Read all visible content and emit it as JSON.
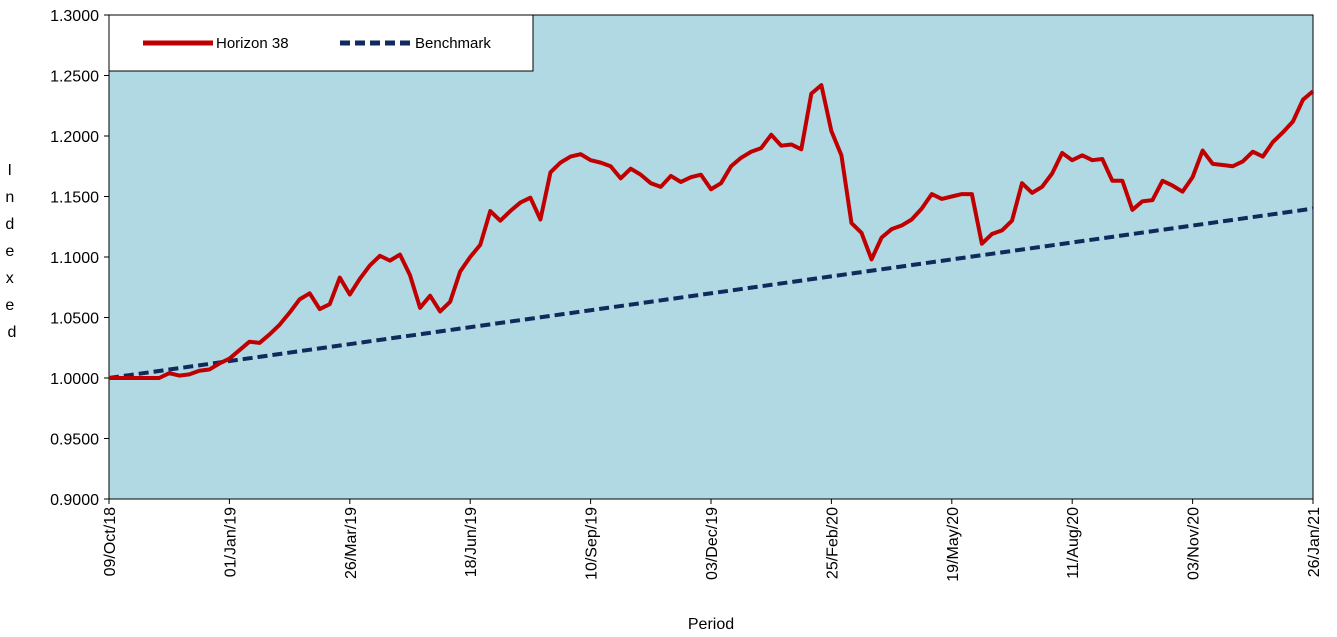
{
  "chart_data": {
    "type": "line",
    "xlabel": "Period",
    "ylabel": "Indexed",
    "ylim": [
      0.9,
      1.3
    ],
    "yticks": [
      "0.9000",
      "0.9500",
      "1.0000",
      "1.0500",
      "1.1000",
      "1.1500",
      "1.2000",
      "1.2500",
      "1.3000"
    ],
    "xticks": [
      {
        "label": "09/Oct/18",
        "date": "2018-10-09"
      },
      {
        "label": "01/Jan/19",
        "date": "2019-01-01"
      },
      {
        "label": "26/Mar/19",
        "date": "2019-03-26"
      },
      {
        "label": "18/Jun/19",
        "date": "2019-06-18"
      },
      {
        "label": "10/Sep/19",
        "date": "2019-09-10"
      },
      {
        "label": "03/Dec/19",
        "date": "2019-12-03"
      },
      {
        "label": "25/Feb/20",
        "date": "2020-02-25"
      },
      {
        "label": "19/May/20",
        "date": "2020-05-19"
      },
      {
        "label": "11/Aug/20",
        "date": "2020-08-11"
      },
      {
        "label": "03/Nov/20",
        "date": "2020-11-03"
      },
      {
        "label": "26/Jan/21",
        "date": "2021-01-26"
      }
    ],
    "legend_position": "top-left",
    "grid": false,
    "colors": {
      "plot_bg": "#b0d9e3",
      "horizon": "#c00000",
      "benchmark": "#102a5c"
    },
    "series": [
      {
        "name": "Horizon 38",
        "style": "solid",
        "points": [
          [
            "2018-10-09",
            1.0
          ],
          [
            "2018-10-16",
            1.0
          ],
          [
            "2018-10-23",
            1.0
          ],
          [
            "2018-10-30",
            1.0
          ],
          [
            "2018-11-06",
            1.0
          ],
          [
            "2018-11-13",
            1.0
          ],
          [
            "2018-11-20",
            1.004
          ],
          [
            "2018-11-27",
            1.002
          ],
          [
            "2018-12-04",
            1.003
          ],
          [
            "2018-12-11",
            1.006
          ],
          [
            "2018-12-18",
            1.007
          ],
          [
            "2018-12-25",
            1.012
          ],
          [
            "2019-01-01",
            1.016
          ],
          [
            "2019-01-08",
            1.023
          ],
          [
            "2019-01-15",
            1.03
          ],
          [
            "2019-01-22",
            1.029
          ],
          [
            "2019-01-29",
            1.036
          ],
          [
            "2019-02-05",
            1.044
          ],
          [
            "2019-02-12",
            1.054
          ],
          [
            "2019-02-19",
            1.065
          ],
          [
            "2019-02-26",
            1.07
          ],
          [
            "2019-03-05",
            1.057
          ],
          [
            "2019-03-12",
            1.061
          ],
          [
            "2019-03-19",
            1.083
          ],
          [
            "2019-03-26",
            1.069
          ],
          [
            "2019-04-02",
            1.082
          ],
          [
            "2019-04-09",
            1.093
          ],
          [
            "2019-04-16",
            1.101
          ],
          [
            "2019-04-23",
            1.097
          ],
          [
            "2019-04-30",
            1.102
          ],
          [
            "2019-05-07",
            1.085
          ],
          [
            "2019-05-14",
            1.058
          ],
          [
            "2019-05-21",
            1.068
          ],
          [
            "2019-05-28",
            1.055
          ],
          [
            "2019-06-04",
            1.063
          ],
          [
            "2019-06-11",
            1.088
          ],
          [
            "2019-06-18",
            1.1
          ],
          [
            "2019-06-25",
            1.11
          ],
          [
            "2019-07-02",
            1.138
          ],
          [
            "2019-07-09",
            1.13
          ],
          [
            "2019-07-16",
            1.138
          ],
          [
            "2019-07-23",
            1.145
          ],
          [
            "2019-07-30",
            1.149
          ],
          [
            "2019-08-06",
            1.131
          ],
          [
            "2019-08-13",
            1.17
          ],
          [
            "2019-08-20",
            1.178
          ],
          [
            "2019-08-27",
            1.183
          ],
          [
            "2019-09-03",
            1.185
          ],
          [
            "2019-09-10",
            1.18
          ],
          [
            "2019-09-17",
            1.178
          ],
          [
            "2019-09-24",
            1.175
          ],
          [
            "2019-10-01",
            1.165
          ],
          [
            "2019-10-08",
            1.173
          ],
          [
            "2019-10-15",
            1.168
          ],
          [
            "2019-10-22",
            1.161
          ],
          [
            "2019-10-29",
            1.158
          ],
          [
            "2019-11-05",
            1.167
          ],
          [
            "2019-11-12",
            1.162
          ],
          [
            "2019-11-19",
            1.166
          ],
          [
            "2019-11-26",
            1.168
          ],
          [
            "2019-12-03",
            1.156
          ],
          [
            "2019-12-10",
            1.161
          ],
          [
            "2019-12-17",
            1.175
          ],
          [
            "2019-12-24",
            1.182
          ],
          [
            "2019-12-31",
            1.187
          ],
          [
            "2020-01-07",
            1.19
          ],
          [
            "2020-01-14",
            1.201
          ],
          [
            "2020-01-21",
            1.192
          ],
          [
            "2020-01-28",
            1.193
          ],
          [
            "2020-02-04",
            1.189
          ],
          [
            "2020-02-11",
            1.235
          ],
          [
            "2020-02-18",
            1.242
          ],
          [
            "2020-02-25",
            1.204
          ],
          [
            "2020-03-03",
            1.184
          ],
          [
            "2020-03-10",
            1.128
          ],
          [
            "2020-03-17",
            1.12
          ],
          [
            "2020-03-24",
            1.098
          ],
          [
            "2020-03-31",
            1.116
          ],
          [
            "2020-04-07",
            1.123
          ],
          [
            "2020-04-14",
            1.126
          ],
          [
            "2020-04-21",
            1.131
          ],
          [
            "2020-04-28",
            1.14
          ],
          [
            "2020-05-05",
            1.152
          ],
          [
            "2020-05-12",
            1.148
          ],
          [
            "2020-05-19",
            1.15
          ],
          [
            "2020-05-26",
            1.152
          ],
          [
            "2020-06-02",
            1.152
          ],
          [
            "2020-06-09",
            1.111
          ],
          [
            "2020-06-16",
            1.119
          ],
          [
            "2020-06-23",
            1.122
          ],
          [
            "2020-06-30",
            1.13
          ],
          [
            "2020-07-07",
            1.161
          ],
          [
            "2020-07-14",
            1.153
          ],
          [
            "2020-07-21",
            1.158
          ],
          [
            "2020-07-28",
            1.169
          ],
          [
            "2020-08-04",
            1.186
          ],
          [
            "2020-08-11",
            1.18
          ],
          [
            "2020-08-18",
            1.184
          ],
          [
            "2020-08-25",
            1.18
          ],
          [
            "2020-09-01",
            1.181
          ],
          [
            "2020-09-08",
            1.163
          ],
          [
            "2020-09-15",
            1.163
          ],
          [
            "2020-09-22",
            1.139
          ],
          [
            "2020-09-29",
            1.146
          ],
          [
            "2020-10-06",
            1.147
          ],
          [
            "2020-10-13",
            1.163
          ],
          [
            "2020-10-20",
            1.159
          ],
          [
            "2020-10-27",
            1.154
          ],
          [
            "2020-11-03",
            1.166
          ],
          [
            "2020-11-10",
            1.188
          ],
          [
            "2020-11-17",
            1.177
          ],
          [
            "2020-11-24",
            1.176
          ],
          [
            "2020-12-01",
            1.175
          ],
          [
            "2020-12-08",
            1.179
          ],
          [
            "2020-12-15",
            1.187
          ],
          [
            "2020-12-22",
            1.183
          ],
          [
            "2020-12-29",
            1.195
          ],
          [
            "2021-01-05",
            1.203
          ],
          [
            "2021-01-12",
            1.212
          ],
          [
            "2021-01-19",
            1.23
          ],
          [
            "2021-01-26",
            1.237
          ]
        ]
      },
      {
        "name": "Benchmark",
        "style": "dashed",
        "points": [
          [
            "2018-10-09",
            1.0
          ],
          [
            "2021-01-26",
            1.14
          ]
        ]
      }
    ]
  }
}
